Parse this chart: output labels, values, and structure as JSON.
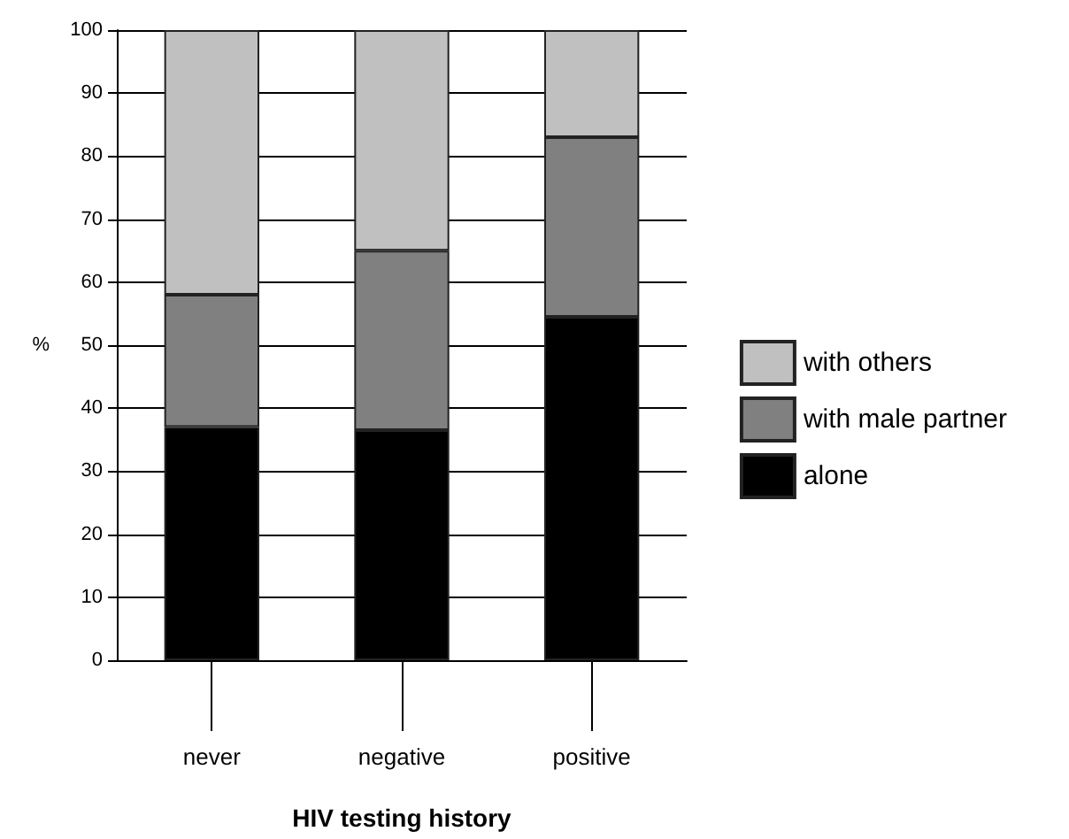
{
  "chart_data": {
    "type": "bar",
    "stacked": true,
    "xlabel": "HIV testing history",
    "ylabel": "%",
    "categories": [
      "never",
      "negative",
      "positive"
    ],
    "series": [
      {
        "name": "alone",
        "color": "#000000",
        "values": [
          37,
          36.5,
          54.5
        ]
      },
      {
        "name": "with male partner",
        "color": "#808080",
        "values": [
          21,
          28.5,
          28.5
        ]
      },
      {
        "name": "with others",
        "color": "#c0c0c0",
        "values": [
          42,
          35,
          17
        ]
      }
    ],
    "ylim": [
      0,
      100
    ],
    "yticks": [
      0,
      10,
      20,
      30,
      40,
      50,
      60,
      70,
      80,
      90,
      100
    ],
    "grid": "y",
    "legend": "right"
  }
}
